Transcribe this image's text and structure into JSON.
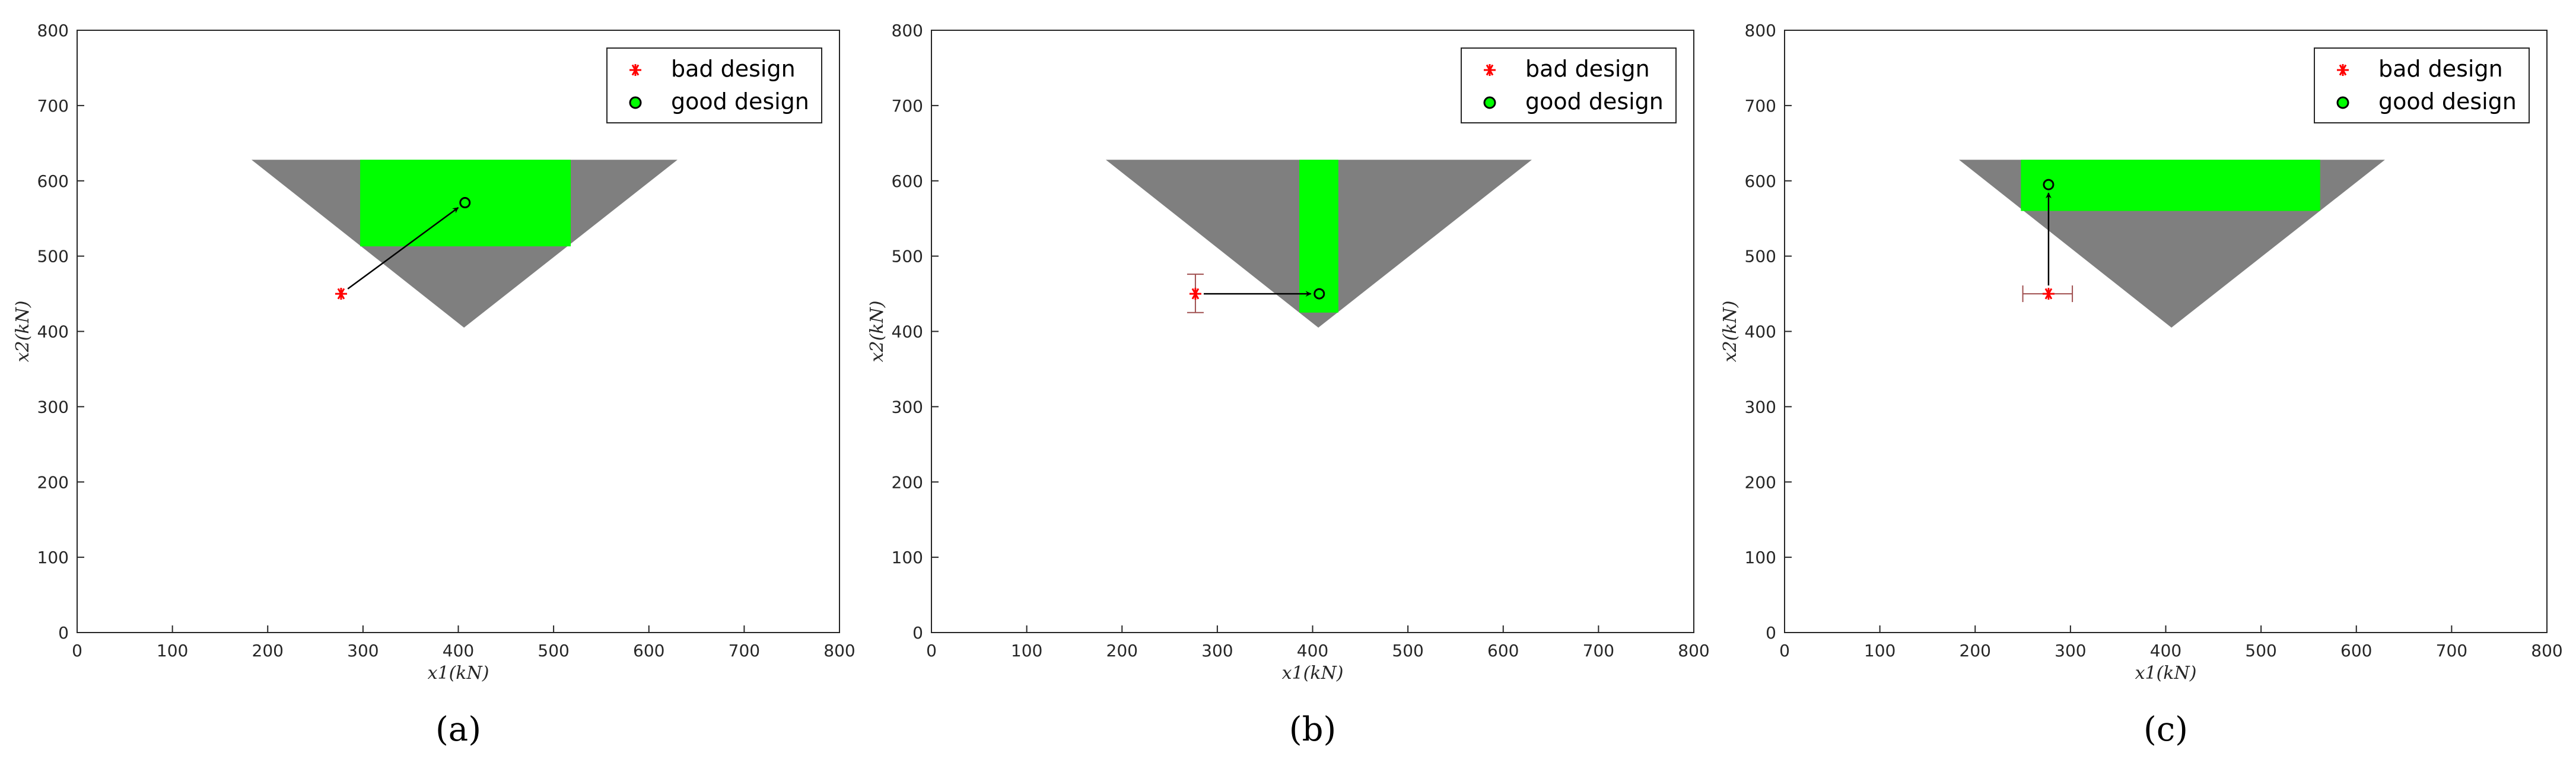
{
  "chart_data": [
    {
      "type": "scatter",
      "caption": "(a)",
      "xlabel": "x1(kN)",
      "ylabel": "x2(kN)",
      "xlim": [
        0,
        800
      ],
      "ylim": [
        0,
        800
      ],
      "xticks": [
        "0",
        "100",
        "200",
        "300",
        "400",
        "500",
        "600",
        "700",
        "800"
      ],
      "yticks": [
        "0",
        "100",
        "200",
        "300",
        "400",
        "500",
        "600",
        "700",
        "800"
      ],
      "grid": false,
      "legend_position": "top-right",
      "legend": [
        "bad design",
        "good design"
      ],
      "feasible_region": [
        [
          183,
          628
        ],
        [
          630,
          628
        ],
        [
          406,
          405
        ]
      ],
      "good_box": {
        "x": [
          297,
          518
        ],
        "y": [
          513,
          628
        ]
      },
      "bad_point": [
        277,
        450
      ],
      "good_point": [
        407,
        571
      ],
      "error_bar": null
    },
    {
      "type": "scatter",
      "caption": "(b)",
      "xlabel": "x1(kN)",
      "ylabel": "x2(kN)",
      "xlim": [
        0,
        800
      ],
      "ylim": [
        0,
        800
      ],
      "xticks": [
        "0",
        "100",
        "200",
        "300",
        "400",
        "500",
        "600",
        "700",
        "800"
      ],
      "yticks": [
        "0",
        "100",
        "200",
        "300",
        "400",
        "500",
        "600",
        "700",
        "800"
      ],
      "grid": false,
      "legend_position": "top-right",
      "legend": [
        "bad design",
        "good design"
      ],
      "feasible_region": [
        [
          183,
          628
        ],
        [
          630,
          628
        ],
        [
          406,
          405
        ]
      ],
      "good_box": {
        "x": [
          386,
          427
        ],
        "y": [
          425,
          628
        ]
      },
      "bad_point": [
        277,
        450
      ],
      "good_point": [
        407,
        450
      ],
      "error_bar": {
        "direction": "vertical",
        "low": 425,
        "high": 476
      }
    },
    {
      "type": "scatter",
      "caption": "(c)",
      "xlabel": "x1(kN)",
      "ylabel": "x2(kN)",
      "xlim": [
        0,
        800
      ],
      "ylim": [
        0,
        800
      ],
      "xticks": [
        "0",
        "100",
        "200",
        "300",
        "400",
        "500",
        "600",
        "700",
        "800"
      ],
      "yticks": [
        "0",
        "100",
        "200",
        "300",
        "400",
        "500",
        "600",
        "700",
        "800"
      ],
      "grid": false,
      "legend_position": "top-right",
      "legend": [
        "bad design",
        "good design"
      ],
      "feasible_region": [
        [
          183,
          628
        ],
        [
          630,
          628
        ],
        [
          406,
          405
        ]
      ],
      "good_box": {
        "x": [
          248,
          562
        ],
        "y": [
          560,
          628
        ]
      },
      "bad_point": [
        277,
        450
      ],
      "good_point": [
        277,
        595
      ],
      "error_bar": {
        "direction": "horizontal",
        "low": 250,
        "high": 302
      }
    }
  ],
  "colors": {
    "feasible": "#7f7f7f",
    "good_region": "#00ff00",
    "bad_marker": "#ff0000",
    "good_marker_fill": "#00ff00",
    "axis": "#262626",
    "error_bar": "#a05050"
  }
}
